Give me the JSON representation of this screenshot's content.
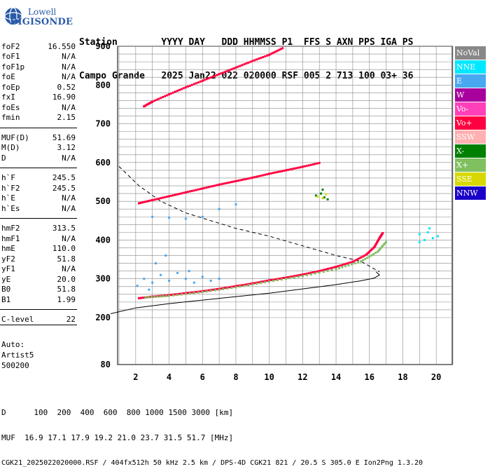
{
  "logo": {
    "line1": "Lowell",
    "line2": "DIGISONDE"
  },
  "header": {
    "line1": "Station        YYYY DAY   DDD HHMMSS P1  FFS S AXN PPS IGA PS",
    "line2": "Campo Grande   2025 Jan22 022 020000 RSF 005 2 713 100 03+ 36"
  },
  "params": [
    {
      "label": "foF2",
      "value": "16.550"
    },
    {
      "label": "foF1",
      "value": "N/A"
    },
    {
      "label": "foF1p",
      "value": "N/A"
    },
    {
      "label": "foE",
      "value": "N/A"
    },
    {
      "label": "foEp",
      "value": "0.52"
    },
    {
      "label": "fxI",
      "value": "16.90"
    },
    {
      "label": "foEs",
      "value": "N/A"
    },
    {
      "label": "fmin",
      "value": "2.15"
    },
    {
      "label": "MUF(D)",
      "value": "51.69"
    },
    {
      "label": "M(D)",
      "value": "3.12"
    },
    {
      "label": "D",
      "value": "N/A"
    },
    {
      "label": "h`F",
      "value": "245.5"
    },
    {
      "label": "h`F2",
      "value": "245.5"
    },
    {
      "label": "h`E",
      "value": "N/A"
    },
    {
      "label": "h`Es",
      "value": "N/A"
    },
    {
      "label": "hmF2",
      "value": "313.5"
    },
    {
      "label": "hmF1",
      "value": "N/A"
    },
    {
      "label": "hmE",
      "value": "110.0"
    },
    {
      "label": "yF2",
      "value": "51.8"
    },
    {
      "label": "yF1",
      "value": "N/A"
    },
    {
      "label": "yE",
      "value": "20.0"
    },
    {
      "label": "B0",
      "value": "51.8"
    },
    {
      "label": "B1",
      "value": "1.99"
    },
    {
      "label": "C-level",
      "value": "22"
    }
  ],
  "autoscale": {
    "line1": "Auto:",
    "line2": "Artist5",
    "line3": "500200"
  },
  "legend": [
    {
      "label": "NoVal",
      "color": "#888888"
    },
    {
      "label": "NNE",
      "color": "#00e8ff"
    },
    {
      "label": "E",
      "color": "#4aa8f0"
    },
    {
      "label": "W",
      "color": "#a8009c"
    },
    {
      "label": "Vo-",
      "color": "#ff40b8"
    },
    {
      "label": "Vo+",
      "color": "#ff0040"
    },
    {
      "label": "SSW",
      "color": "#ffb0b0"
    },
    {
      "label": "X-",
      "color": "#008000"
    },
    {
      "label": "X+",
      "color": "#80c060"
    },
    {
      "label": "SSE",
      "color": "#d8d800"
    },
    {
      "label": "NNW",
      "color": "#1a00c8"
    }
  ],
  "footer": {
    "d_row": "D      100  200  400  600  800 1000 1500 3000 [km]",
    "muf_row": "MUF  16.9 17.1 17.9 19.2 21.0 23.7 31.5 51.7 [MHz]",
    "info_row": "CGK21_2025022020000.RSF / 404fx512h 50 kHz 2.5 km / DPS-4D CGK21 821 / 20.5 S 305.0 E Ion2Png 1.3.20"
  },
  "chart_data": {
    "type": "scatter",
    "xlabel": "",
    "ylabel": "",
    "xlim": [
      1,
      21
    ],
    "ylim": [
      80,
      900
    ],
    "xticks": [
      2,
      4,
      6,
      8,
      10,
      12,
      14,
      16,
      18,
      20
    ],
    "yticks": [
      200,
      300,
      400,
      500,
      600,
      700,
      800,
      900
    ],
    "yticks_bottom_label": "80",
    "grid": true,
    "legend_position": "right",
    "series": [
      {
        "name": "Vo+",
        "color": "#ff0040",
        "points": [
          [
            2.2,
            250
          ],
          [
            3,
            254
          ],
          [
            4,
            258
          ],
          [
            5,
            263
          ],
          [
            6,
            268
          ],
          [
            7,
            274
          ],
          [
            8,
            281
          ],
          [
            9,
            288
          ],
          [
            10,
            296
          ],
          [
            11,
            303
          ],
          [
            12,
            311
          ],
          [
            13,
            320
          ],
          [
            14,
            331
          ],
          [
            15,
            344
          ],
          [
            15.8,
            362
          ],
          [
            16.3,
            382
          ],
          [
            16.6,
            405
          ],
          [
            16.8,
            418
          ]
        ]
      },
      {
        "name": "Vo+",
        "color": "#ff0040",
        "points": [
          [
            2.2,
            495
          ],
          [
            3,
            503
          ],
          [
            4,
            513
          ],
          [
            5,
            523
          ],
          [
            6,
            533
          ],
          [
            7,
            543
          ],
          [
            8,
            552
          ],
          [
            9,
            561
          ],
          [
            10,
            571
          ],
          [
            11,
            580
          ],
          [
            12,
            589
          ],
          [
            13,
            599
          ]
        ]
      },
      {
        "name": "Vo+",
        "color": "#ff0040",
        "points": [
          [
            2.5,
            745
          ],
          [
            3,
            757
          ],
          [
            4,
            776
          ],
          [
            5,
            794
          ],
          [
            6,
            811
          ],
          [
            7,
            828
          ],
          [
            8,
            845
          ],
          [
            9,
            862
          ],
          [
            10,
            878
          ],
          [
            10.8,
            895
          ]
        ]
      },
      {
        "name": "X+",
        "color": "#80c060",
        "points": [
          [
            2.6,
            252
          ],
          [
            4,
            256
          ],
          [
            6,
            266
          ],
          [
            8,
            278
          ],
          [
            10,
            293
          ],
          [
            12,
            307
          ],
          [
            14,
            325
          ],
          [
            15.5,
            345
          ],
          [
            16.5,
            370
          ],
          [
            17,
            395
          ]
        ]
      },
      {
        "name": "E",
        "color": "#4aa8f0",
        "points": [
          [
            2.1,
            282
          ],
          [
            2.5,
            300
          ],
          [
            3,
            290
          ],
          [
            3.5,
            310
          ],
          [
            4,
            295
          ],
          [
            4.5,
            315
          ],
          [
            5,
            300
          ],
          [
            5.5,
            290
          ],
          [
            6,
            305
          ],
          [
            6.5,
            295
          ],
          [
            7,
            300
          ],
          [
            3.2,
            340
          ],
          [
            3.8,
            360
          ],
          [
            2.8,
            272
          ],
          [
            5.2,
            320
          ],
          [
            3,
            460
          ],
          [
            4,
            458
          ],
          [
            5,
            455
          ],
          [
            6,
            460
          ],
          [
            7,
            480
          ],
          [
            8,
            492
          ]
        ]
      },
      {
        "name": "NNE",
        "color": "#00e8ff",
        "points": [
          [
            19,
            415
          ],
          [
            19.3,
            400
          ],
          [
            19.5,
            420
          ],
          [
            19.8,
            405
          ],
          [
            19,
            395
          ],
          [
            19.6,
            430
          ],
          [
            20.1,
            410
          ]
        ]
      },
      {
        "name": "X-",
        "color": "#008000",
        "points": [
          [
            12.8,
            515
          ],
          [
            13.1,
            520
          ],
          [
            13.3,
            510
          ],
          [
            13.5,
            505
          ],
          [
            13.2,
            530
          ]
        ]
      },
      {
        "name": "SSE",
        "color": "#d8d800",
        "points": [
          [
            12.9,
            512
          ],
          [
            13.2,
            508
          ],
          [
            13.4,
            518
          ]
        ]
      }
    ],
    "profile_solid": [
      [
        0.5,
        210
      ],
      [
        2,
        225
      ],
      [
        4,
        236
      ],
      [
        6,
        245
      ],
      [
        8,
        254
      ],
      [
        10,
        263
      ],
      [
        12,
        274
      ],
      [
        14,
        285
      ],
      [
        15.5,
        295
      ],
      [
        16.3,
        302
      ],
      [
        16.6,
        310
      ],
      [
        16.4,
        318
      ]
    ],
    "profile_dashed": [
      [
        1,
        590
      ],
      [
        2.2,
        540
      ],
      [
        3.5,
        500
      ],
      [
        5,
        470
      ],
      [
        6.5,
        450
      ],
      [
        8,
        430
      ],
      [
        10,
        410
      ],
      [
        12,
        385
      ],
      [
        14,
        360
      ],
      [
        15.5,
        345
      ],
      [
        16.6,
        318
      ]
    ]
  }
}
